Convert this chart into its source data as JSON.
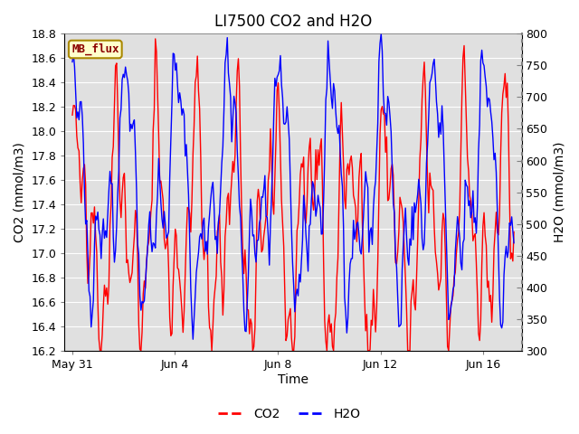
{
  "title": "LI7500 CO2 and H2O",
  "xlabel": "Time",
  "ylabel_left": "CO2 (mmol/m3)",
  "ylabel_right": "H2O (mmol/m3)",
  "ylim_left": [
    16.2,
    18.8
  ],
  "ylim_right": [
    300,
    800
  ],
  "yticks_left": [
    16.2,
    16.4,
    16.6,
    16.8,
    17.0,
    17.2,
    17.4,
    17.6,
    17.8,
    18.0,
    18.2,
    18.4,
    18.6,
    18.8
  ],
  "yticks_right": [
    300,
    350,
    400,
    450,
    500,
    550,
    600,
    650,
    700,
    750,
    800
  ],
  "xtick_labels": [
    "May 31",
    "Jun 4",
    "Jun 8",
    "Jun 12",
    "Jun 16"
  ],
  "xtick_positions": [
    0,
    4,
    8,
    12,
    16
  ],
  "xlim": [
    -0.3,
    17.5
  ],
  "mb_flux_label": "MB_flux",
  "legend_co2": "CO2",
  "legend_h2o": "H2O",
  "co2_color": "#FF0000",
  "h2o_color": "#0000FF",
  "bg_color": "#FFFFFF",
  "plot_bg_color": "#E0E0E0",
  "grid_color": "#FFFFFF",
  "title_fontsize": 12,
  "axis_label_fontsize": 10,
  "tick_fontsize": 9
}
